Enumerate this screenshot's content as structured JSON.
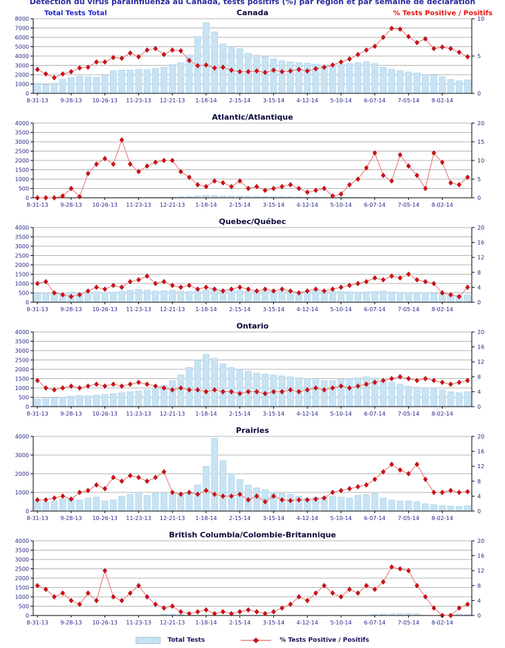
{
  "title": "Détection du virus parainfluenza au Canada, tests positifs (%) par région et par semaine de déclaration",
  "legend": {
    "total_tests_label": "Total Tests",
    "pct_label": "% Tests Positive / Positifs"
  },
  "colors": {
    "bar_fill": "#c7e3f4",
    "bar_edge": "#a5cde4",
    "line": "#ec8383",
    "marker": "#d31016",
    "marker_edge": "#8b0000",
    "grid": "#9a9a9a",
    "axis": "#000000",
    "tick_text": "#26268c",
    "panel_title": "#0a0a3c",
    "left_label": "#2424c8",
    "right_label": "#e8150f"
  },
  "chart_data": {
    "type": "bar",
    "description": "Six stacked combo panels: weekly total tests (light blue bars, left axis) and % tests positive (red diamond line, right axis), Aug 2013 - Aug 2014",
    "left_axis_label": "Total Tests Total",
    "right_axis_label": "% Tests Positive / Positifs",
    "n_weeks": 52,
    "weeks_per_x_label": 4,
    "x_tick_labels": [
      "8-31-13",
      "9-28-13",
      "10-26-13",
      "11-23-13",
      "12-21-13",
      "1-18-14",
      "2-15-14",
      "3-15-14",
      "4-12-14",
      "5-10-14",
      "6-07-14",
      "7-05-14",
      "8-02-14"
    ],
    "panels": [
      {
        "title": "Canada",
        "slug": "canada",
        "left_max": 8000,
        "left_ticks": [
          0,
          1000,
          2000,
          3000,
          4000,
          5000,
          6000,
          7000,
          8000
        ],
        "right_max": 10,
        "right_ticks": [
          0,
          5,
          10
        ],
        "total_tests": [
          1100,
          950,
          1100,
          1500,
          1700,
          1850,
          1800,
          1750,
          1900,
          2450,
          2500,
          2500,
          2600,
          2550,
          2700,
          2800,
          3100,
          3300,
          4100,
          6100,
          7600,
          6600,
          5300,
          4900,
          4800,
          4300,
          4100,
          3900,
          3700,
          3500,
          3400,
          3300,
          3250,
          3150,
          3050,
          3000,
          3100,
          3200,
          3300,
          3400,
          3200,
          2800,
          2600,
          2450,
          2300,
          2200,
          2000,
          1950,
          1800,
          1500,
          1350,
          1450
        ],
        "pct_positive": [
          3.2,
          2.6,
          2.1,
          2.6,
          2.9,
          3.4,
          3.5,
          4.2,
          4.2,
          4.8,
          4.7,
          5.4,
          4.9,
          5.8,
          6.0,
          5.2,
          5.8,
          5.7,
          4.4,
          3.7,
          3.8,
          3.4,
          3.5,
          3.1,
          2.9,
          2.9,
          3.0,
          2.8,
          3.1,
          2.9,
          3.0,
          3.2,
          3.0,
          3.3,
          3.5,
          3.8,
          4.2,
          4.6,
          5.2,
          5.8,
          6.3,
          7.5,
          8.7,
          8.6,
          7.6,
          6.8,
          7.3,
          6.0,
          6.2,
          6.0,
          5.5,
          4.9
        ]
      },
      {
        "title": "Atlantic/Atlantique",
        "slug": "atlantic",
        "left_max": 4000,
        "left_ticks": [
          0,
          500,
          1000,
          1500,
          2000,
          2500,
          3000,
          3500,
          4000
        ],
        "right_max": 20,
        "right_ticks": [
          0,
          5,
          10,
          15,
          20
        ],
        "total_tests": [
          8,
          6,
          8,
          10,
          12,
          10,
          14,
          16,
          12,
          15,
          20,
          22,
          25,
          22,
          28,
          35,
          45,
          60,
          80,
          110,
          140,
          125,
          105,
          95,
          90,
          85,
          80,
          75,
          70,
          60,
          55,
          50,
          45,
          40,
          35,
          30,
          28,
          25,
          22,
          20,
          18,
          15,
          12,
          10,
          10,
          8,
          8,
          6,
          6,
          5,
          5,
          5
        ],
        "pct_positive": [
          0,
          0,
          0,
          0.5,
          2.5,
          0.3,
          6.5,
          9,
          10.5,
          9,
          15.5,
          9,
          7,
          8.5,
          9.5,
          10,
          10,
          7,
          5.5,
          3.5,
          3,
          4.5,
          4,
          3,
          4.5,
          2.5,
          3,
          2,
          2.5,
          3,
          3.5,
          2.5,
          1.5,
          2,
          2.5,
          0.5,
          1,
          3.5,
          5,
          8,
          12,
          6,
          4.5,
          11.5,
          8.5,
          6,
          2.5,
          12,
          9.5,
          4,
          3.5,
          5.5
        ]
      },
      {
        "title": "Quebec/Québec",
        "slug": "quebec",
        "left_max": 4000,
        "left_ticks": [
          0,
          500,
          1000,
          1500,
          2000,
          2500,
          3000,
          3500,
          4000
        ],
        "right_max": 20,
        "right_ticks": [
          0,
          4,
          8,
          12,
          16,
          20
        ],
        "total_tests": [
          480,
          500,
          450,
          520,
          550,
          500,
          530,
          560,
          500,
          550,
          600,
          650,
          700,
          650,
          600,
          620,
          640,
          600,
          580,
          620,
          650,
          700,
          680,
          650,
          640,
          620,
          600,
          620,
          640,
          600,
          580,
          560,
          600,
          620,
          640,
          600,
          580,
          560,
          540,
          560,
          580,
          600,
          560,
          540,
          520,
          500,
          520,
          480,
          460,
          420,
          380,
          400
        ],
        "pct_positive": [
          5,
          5.5,
          2.5,
          2,
          1.5,
          2,
          3,
          4,
          3.5,
          4.5,
          4,
          5.5,
          6,
          7,
          5,
          5.5,
          4.5,
          4,
          4.5,
          3.5,
          4,
          3.5,
          3,
          3.5,
          4,
          3.5,
          3,
          3.5,
          3,
          3.5,
          3,
          2.5,
          3,
          3.5,
          3,
          3.5,
          4,
          4.5,
          5,
          5.5,
          6.5,
          6,
          7,
          6.5,
          7.5,
          6,
          5.5,
          5,
          2.5,
          2,
          1.5,
          4
        ]
      },
      {
        "title": "Ontario",
        "slug": "ontario",
        "left_max": 4000,
        "left_ticks": [
          0,
          500,
          1000,
          1500,
          2000,
          2500,
          3000,
          3500,
          4000
        ],
        "right_max": 20,
        "right_ticks": [
          0,
          4,
          8,
          12,
          16,
          20
        ],
        "total_tests": [
          420,
          450,
          480,
          520,
          560,
          600,
          580,
          620,
          660,
          700,
          750,
          800,
          850,
          900,
          1000,
          1150,
          1400,
          1700,
          2100,
          2500,
          2800,
          2600,
          2300,
          2100,
          2000,
          1900,
          1800,
          1750,
          1700,
          1650,
          1600,
          1550,
          1500,
          1450,
          1400,
          1400,
          1450,
          1500,
          1550,
          1600,
          1550,
          1400,
          1300,
          1200,
          1100,
          1050,
          1000,
          950,
          900,
          800,
          750,
          800
        ],
        "pct_positive": [
          7,
          5,
          4.5,
          5,
          5.5,
          5,
          5.5,
          6,
          5.5,
          6,
          5.5,
          6,
          6.5,
          6,
          5.5,
          5,
          4.5,
          5,
          4.5,
          4.5,
          4,
          4.5,
          4,
          4,
          3.5,
          4,
          4,
          3.5,
          4,
          4,
          4.5,
          4,
          4.5,
          5,
          4.5,
          5,
          5.5,
          5,
          5.5,
          6,
          6.5,
          7,
          7.5,
          8,
          7.5,
          7,
          7.5,
          7,
          6.5,
          6,
          6.5,
          7
        ]
      },
      {
        "title": "Prairies",
        "slug": "prairies",
        "left_max": 4000,
        "left_ticks": [
          0,
          1000,
          2000,
          3000,
          4000
        ],
        "right_max": 20,
        "right_ticks": [
          0,
          4,
          8,
          12,
          16,
          20
        ],
        "total_tests": [
          550,
          480,
          550,
          650,
          700,
          600,
          700,
          750,
          550,
          600,
          800,
          900,
          1000,
          850,
          950,
          950,
          900,
          950,
          950,
          1400,
          2400,
          3900,
          2700,
          2000,
          1700,
          1400,
          1250,
          1150,
          1000,
          950,
          900,
          800,
          700,
          750,
          750,
          800,
          750,
          700,
          850,
          900,
          950,
          700,
          600,
          550,
          550,
          500,
          400,
          350,
          300,
          280,
          250,
          300
        ],
        "pct_positive": [
          3,
          3,
          3.5,
          4,
          3.2,
          5,
          5.5,
          7,
          6,
          9,
          8,
          9.5,
          9,
          8,
          9,
          10.5,
          5,
          4.5,
          5,
          4.5,
          5.5,
          4.5,
          4,
          4,
          4.5,
          3,
          4,
          2.5,
          4,
          3,
          2.8,
          3,
          3,
          3.2,
          3.5,
          5,
          5.5,
          6,
          6.5,
          7,
          8.5,
          10.5,
          12.5,
          11,
          10,
          12.5,
          8.5,
          5,
          5,
          5.5,
          5,
          5.2
        ]
      },
      {
        "title": "British Columbia/Colombie-Britannique",
        "slug": "bc",
        "left_max": 4000,
        "left_ticks": [
          0,
          500,
          1000,
          1500,
          2000,
          2500,
          3000,
          3500,
          4000
        ],
        "right_max": 20,
        "right_ticks": [
          0,
          4,
          8,
          12,
          16,
          20
        ],
        "total_tests": [
          0,
          0,
          0,
          0,
          0,
          0,
          0,
          0,
          0,
          0,
          0,
          0,
          0,
          0,
          0,
          60,
          80,
          70,
          0,
          0,
          0,
          0,
          0,
          0,
          0,
          0,
          0,
          0,
          0,
          0,
          0,
          0,
          0,
          0,
          0,
          0,
          0,
          0,
          0,
          0,
          60,
          80,
          90,
          100,
          110,
          100,
          0,
          0,
          60,
          70,
          60,
          50
        ],
        "pct_positive": [
          8,
          7,
          5,
          6,
          4,
          3,
          6,
          4,
          12,
          5,
          4,
          6,
          8,
          5,
          3,
          2,
          2.5,
          1,
          0.5,
          1,
          1.5,
          0.5,
          1,
          0.5,
          1,
          1.5,
          1,
          0.5,
          1,
          2,
          3,
          5,
          4,
          6,
          8,
          6,
          5,
          7,
          6,
          8,
          7,
          9,
          13,
          12.5,
          12,
          8,
          5,
          2,
          0,
          0,
          2,
          3
        ]
      }
    ]
  }
}
